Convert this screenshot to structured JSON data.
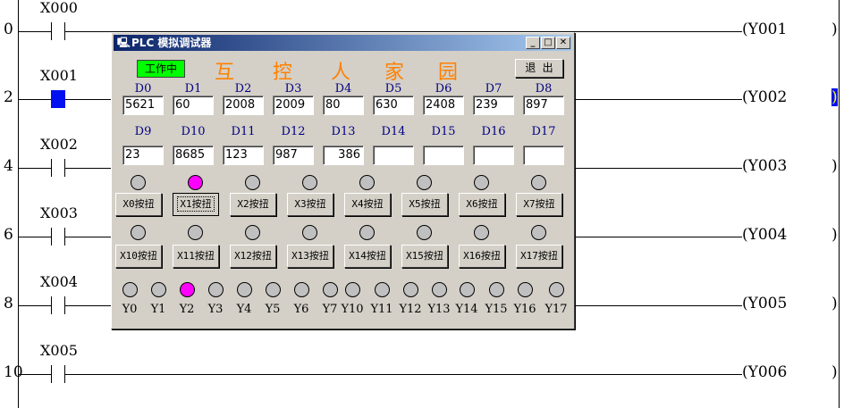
{
  "ladder": {
    "rungs": [
      {
        "step": "0",
        "contact": "X000",
        "coil": "(Y001",
        "selected": false
      },
      {
        "step": "2",
        "contact": "X001",
        "coil": "(Y002",
        "selected": true
      },
      {
        "step": "4",
        "contact": "X002",
        "coil": "(Y003",
        "selected": false
      },
      {
        "step": "6",
        "contact": "X003",
        "coil": "(Y004",
        "selected": false
      },
      {
        "step": "8",
        "contact": "X004",
        "coil": "(Y005",
        "selected": false
      },
      {
        "step": "10",
        "contact": "X005",
        "coil": "(Y006",
        "selected": false
      }
    ],
    "selection_color": "#0010f0"
  },
  "dialog": {
    "title": "PLC 模拟调试器",
    "status_label": "工作中",
    "status_color": "#00ff00",
    "brand": [
      "互",
      "控",
      "人",
      "家",
      "园"
    ],
    "brand_color": "#ff8000",
    "exit_label": "退 出",
    "registers_row1": [
      [
        "D0",
        "5621"
      ],
      [
        "D1",
        "60"
      ],
      [
        "D2",
        "2008"
      ],
      [
        "D3",
        "2009"
      ],
      [
        "D4",
        "80"
      ],
      [
        "D5",
        "630"
      ],
      [
        "D6",
        "2408"
      ],
      [
        "D7",
        "239"
      ],
      [
        "D8",
        "897"
      ]
    ],
    "registers_row2": [
      [
        "D9",
        "23"
      ],
      [
        "D10",
        "8685"
      ],
      [
        "D11",
        "123"
      ],
      [
        "D12",
        "987"
      ],
      [
        "D13",
        "386"
      ],
      [
        "D14",
        ""
      ],
      [
        "D15",
        ""
      ],
      [
        "D16",
        ""
      ],
      [
        "D17",
        ""
      ]
    ],
    "inputs_row1": [
      [
        "X0按扭",
        false
      ],
      [
        "X1按扭",
        true
      ],
      [
        "X2按扭",
        false
      ],
      [
        "X3按扭",
        false
      ],
      [
        "X4按扭",
        false
      ],
      [
        "X5按扭",
        false
      ],
      [
        "X6按扭",
        false
      ],
      [
        "X7按扭",
        false
      ]
    ],
    "inputs_row2": [
      [
        "X10按扭",
        false
      ],
      [
        "X11按扭",
        false
      ],
      [
        "X12按扭",
        false
      ],
      [
        "X13按扭",
        false
      ],
      [
        "X14按扭",
        false
      ],
      [
        "X15按扭",
        false
      ],
      [
        "X16按扭",
        false
      ],
      [
        "X17按扭",
        false
      ]
    ],
    "focused_button": "X1按扭",
    "outputs": [
      [
        "Y0",
        false
      ],
      [
        "Y1",
        false
      ],
      [
        "Y2",
        true
      ],
      [
        "Y3",
        false
      ],
      [
        "Y4",
        false
      ],
      [
        "Y5",
        false
      ],
      [
        "Y6",
        false
      ],
      [
        "Y7",
        false
      ],
      [
        "Y10",
        false
      ],
      [
        "Y11",
        false
      ],
      [
        "Y12",
        false
      ],
      [
        "Y13",
        false
      ],
      [
        "Y14",
        false
      ],
      [
        "Y15",
        false
      ],
      [
        "Y16",
        false
      ],
      [
        "Y17",
        false
      ]
    ],
    "lamp_on_color": "#ff00ff"
  }
}
